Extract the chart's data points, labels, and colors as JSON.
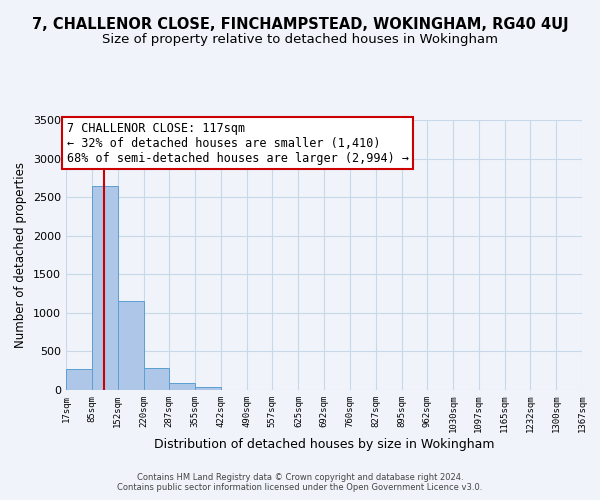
{
  "title": "7, CHALLENOR CLOSE, FINCHAMPSTEAD, WOKINGHAM, RG40 4UJ",
  "subtitle": "Size of property relative to detached houses in Wokingham",
  "xlabel": "Distribution of detached houses by size in Wokingham",
  "ylabel": "Number of detached properties",
  "bar_values": [
    270,
    2640,
    1150,
    280,
    90,
    45,
    0,
    0,
    0,
    0,
    0,
    0,
    0,
    0,
    0,
    0,
    0,
    0,
    0,
    0
  ],
  "bin_edges": [
    17,
    85,
    152,
    220,
    287,
    355,
    422,
    490,
    557,
    625,
    692,
    760,
    827,
    895,
    962,
    1030,
    1097,
    1165,
    1232,
    1300,
    1367
  ],
  "tick_labels": [
    "17sqm",
    "85sqm",
    "152sqm",
    "220sqm",
    "287sqm",
    "355sqm",
    "422sqm",
    "490sqm",
    "557sqm",
    "625sqm",
    "692sqm",
    "760sqm",
    "827sqm",
    "895sqm",
    "962sqm",
    "1030sqm",
    "1097sqm",
    "1165sqm",
    "1232sqm",
    "1300sqm",
    "1367sqm"
  ],
  "bar_color": "#aec6e8",
  "bar_edge_color": "#5a9fd4",
  "property_line_x": 117,
  "property_line_color": "#cc0000",
  "annotation_text": "7 CHALLENOR CLOSE: 117sqm\n← 32% of detached houses are smaller (1,410)\n68% of semi-detached houses are larger (2,994) →",
  "annotation_box_color": "#ffffff",
  "annotation_box_edge_color": "#cc0000",
  "ylim": [
    0,
    3500
  ],
  "yticks": [
    0,
    500,
    1000,
    1500,
    2000,
    2500,
    3000,
    3500
  ],
  "grid_color": "#c8d8e8",
  "background_color": "#f0f4fa",
  "footer_text": "Contains HM Land Registry data © Crown copyright and database right 2024.\nContains public sector information licensed under the Open Government Licence v3.0.",
  "title_fontsize": 10.5,
  "subtitle_fontsize": 9.5,
  "annotation_fontsize": 8.5,
  "footer_fontsize": 6.0
}
